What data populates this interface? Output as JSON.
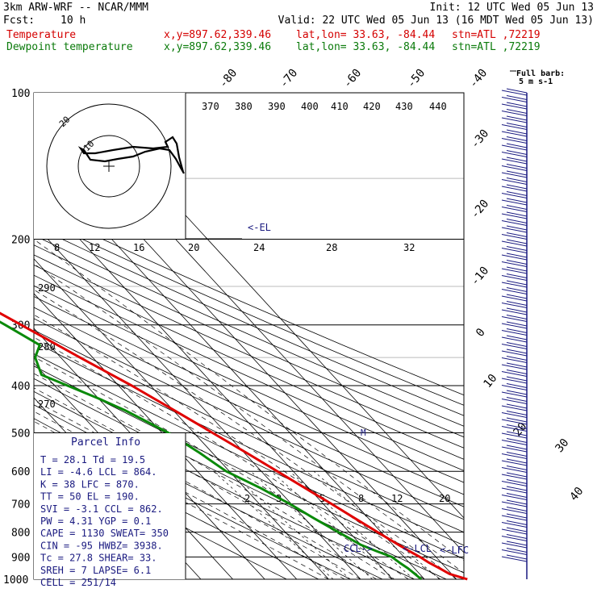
{
  "header": {
    "model": "3km ARW-WRF -- NCAR/MMM",
    "init": "Init: 12 UTC Wed 05 Jun 13",
    "fcst_label": "Fcst:",
    "fcst_value": "10 h",
    "valid": "Valid: 22 UTC Wed 05 Jun 13 (16 MDT Wed 05 Jun 13)",
    "temp_label": "Temperature",
    "dew_label": "Dewpoint temperature",
    "xy": "x,y=897.62,339.46",
    "latlon": "lat,lon= 33.63, -84.44",
    "stn": "stn=ATL ,72219"
  },
  "colors": {
    "temperature": "#e00000",
    "dewpoint": "#0a8a0a",
    "annot": "#1a1a80"
  },
  "legend_barb": {
    "line1": "Full barb:",
    "line2": "5 m s-1"
  },
  "chart_data": {
    "type": "line",
    "title": "",
    "ylabel": "",
    "xlabel": "",
    "y_scale": "log-pressure",
    "pressure_ticks": [
      100,
      200,
      300,
      400,
      500,
      600,
      700,
      800,
      900,
      1000
    ],
    "temperature_ticks": [
      -80,
      -70,
      -60,
      -50,
      -40,
      -30,
      -20,
      -10,
      0,
      10,
      20,
      30,
      40
    ],
    "theta_labels": [
      "370",
      "380",
      "390",
      "400",
      "410",
      "420",
      "430",
      "440"
    ],
    "theta_labels_left": [
      "290",
      "280",
      "270"
    ],
    "mixing_ratio_labels": [
      "2",
      "3",
      "5",
      "8",
      "12",
      "20"
    ],
    "hodograph_speed_labels": [
      "8",
      "12",
      "16",
      "20",
      "24",
      "28",
      "32"
    ],
    "hodograph_unit": "kts",
    "hodograph_rings": [
      "10",
      "20"
    ],
    "series": [
      {
        "name": "Temperature",
        "points": [
          [
            1000,
            33.4
          ],
          [
            975,
            29.4
          ],
          [
            950,
            27.9
          ],
          [
            925,
            26.2
          ],
          [
            900,
            25.0
          ],
          [
            875,
            23.3
          ],
          [
            850,
            21.8
          ],
          [
            800,
            18.9
          ],
          [
            750,
            15.8
          ],
          [
            700,
            12.6
          ],
          [
            650,
            8.9
          ],
          [
            600,
            5.0
          ],
          [
            550,
            0.7
          ],
          [
            500,
            -4.2
          ],
          [
            450,
            -9.6
          ],
          [
            400,
            -15.9
          ],
          [
            350,
            -24.0
          ],
          [
            300,
            -33.0
          ],
          [
            250,
            -43.8
          ],
          [
            225,
            -50.0
          ],
          [
            200,
            -56.2
          ],
          [
            175,
            -62.0
          ],
          [
            150,
            -65.8
          ],
          [
            125,
            -66.5
          ],
          [
            110,
            -65.0
          ],
          [
            100,
            -64.5
          ]
        ]
      },
      {
        "name": "Dewpoint temperature",
        "points": [
          [
            1000,
            19.0
          ],
          [
            975,
            18.5
          ],
          [
            950,
            18.0
          ],
          [
            925,
            17.0
          ],
          [
            900,
            16.2
          ],
          [
            875,
            13.0
          ],
          [
            850,
            10.0
          ],
          [
            800,
            6.6
          ],
          [
            750,
            3.0
          ],
          [
            700,
            -0.5
          ],
          [
            650,
            -5.0
          ],
          [
            600,
            -11.0
          ],
          [
            550,
            -14.0
          ],
          [
            500,
            -18.0
          ],
          [
            450,
            -25.0
          ],
          [
            425,
            -30.0
          ],
          [
            400,
            -36.0
          ],
          [
            380,
            -41.0
          ],
          [
            350,
            -38.0
          ],
          [
            330,
            -33.0
          ],
          [
            300,
            -38.0
          ],
          [
            250,
            -48.0
          ],
          [
            200,
            -56.0
          ],
          [
            175,
            -63.0
          ],
          [
            150,
            -72.0
          ],
          [
            135,
            -80.0
          ],
          [
            120,
            -81.0
          ],
          [
            100,
            -80.0
          ]
        ]
      }
    ],
    "annotations": [
      "<-EL",
      "CCL->",
      "<-LCL",
      "<-LFC",
      "M"
    ]
  },
  "parcel": {
    "title": "Parcel Info",
    "rows": [
      "T  =   28.1  Td =  19.5",
      "LI =   -4.6  LCL =  864.",
      "K  =     38  LFC =  870.",
      "TT =     50  EL  =  190.",
      "SVI =  -3.1  CCL =  862.",
      "PW =   4.31  YGP =   0.1",
      "CAPE =  1130  SWEAT=  350",
      "CIN =   -95  HWBZ= 3938.",
      "Tc =   27.8  SHEAR=  33.",
      "SREH =     7  LAPSE=  6.1",
      "CELL = 251/14"
    ]
  }
}
